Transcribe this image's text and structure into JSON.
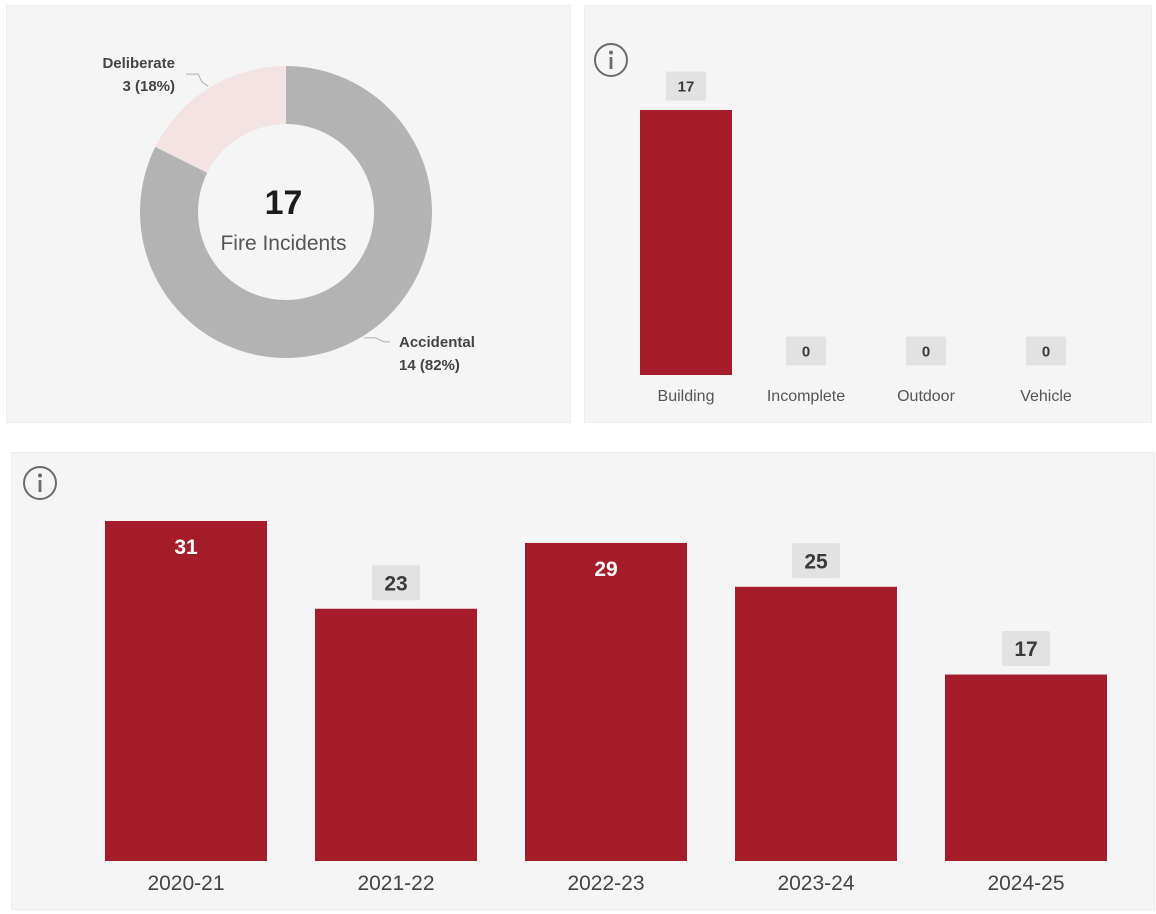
{
  "colors": {
    "bar": "#a51c2a",
    "accidental": "#b3b3b3",
    "deliberate": "#f3e3e3",
    "label_box": "#e2e2e2",
    "panel_bg": "#f5f5f5"
  },
  "icons": {
    "info": "info-icon"
  },
  "chart_data": [
    {
      "type": "pie",
      "variant": "donut",
      "center_value": "17",
      "center_label": "Fire Incidents",
      "slices": [
        {
          "label": "Accidental",
          "value": 14,
          "display": "14 (82%)",
          "color": "#b3b3b3"
        },
        {
          "label": "Deliberate",
          "value": 3,
          "display": "3 (18%)",
          "color": "#f3e3e3"
        }
      ]
    },
    {
      "type": "bar",
      "categories": [
        "Building",
        "Incomplete",
        "Outdoor",
        "Vehicle"
      ],
      "values": [
        17,
        0,
        0,
        0
      ],
      "ylim": [
        0,
        17
      ],
      "grid": false
    },
    {
      "type": "bar",
      "categories": [
        "2020-21",
        "2021-22",
        "2022-23",
        "2023-24",
        "2024-25"
      ],
      "values": [
        31,
        23,
        29,
        25,
        17
      ],
      "ylim": [
        0,
        31
      ],
      "grid": false
    }
  ]
}
